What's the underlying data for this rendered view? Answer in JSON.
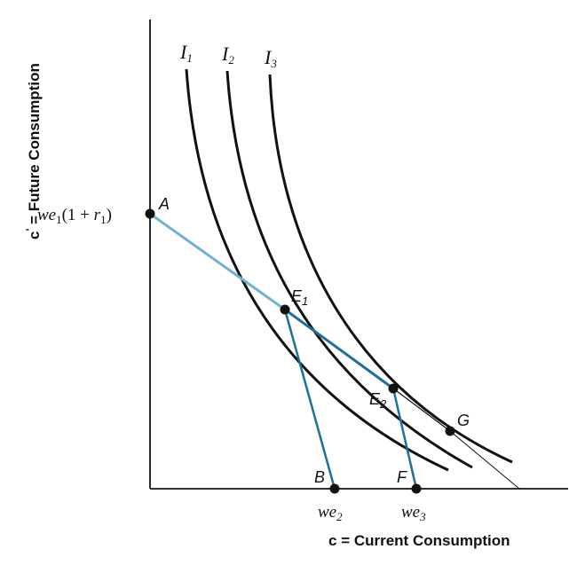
{
  "axes": {
    "x_title": "c = Current Consumption",
    "y_title_prefix": "c",
    "y_title_prime": "'",
    "y_title_rest": " = Future Consumption"
  },
  "indifference_curves": [
    {
      "label": "I",
      "sub": "1"
    },
    {
      "label": "I",
      "sub": "2"
    },
    {
      "label": "I",
      "sub": "3"
    }
  ],
  "points": {
    "A": "A",
    "B": "B",
    "F": "F",
    "G": "G",
    "E1": {
      "label": "E",
      "sub": "1"
    },
    "E2": {
      "label": "E",
      "sub": "2"
    }
  },
  "y_intercept_label": {
    "we": "we",
    "sub1": "1",
    "open": "(1 + ",
    "r": "r",
    "sub2": "1",
    "close": ")"
  },
  "x_ticks": {
    "we2": {
      "text": "we",
      "sub": "2"
    },
    "we3": {
      "text": "we",
      "sub": "3"
    }
  },
  "colors": {
    "curves": "#111111",
    "budget_original": "#6fb3d9",
    "budget_new": "#1f6f9e",
    "axes": "#111111"
  }
}
